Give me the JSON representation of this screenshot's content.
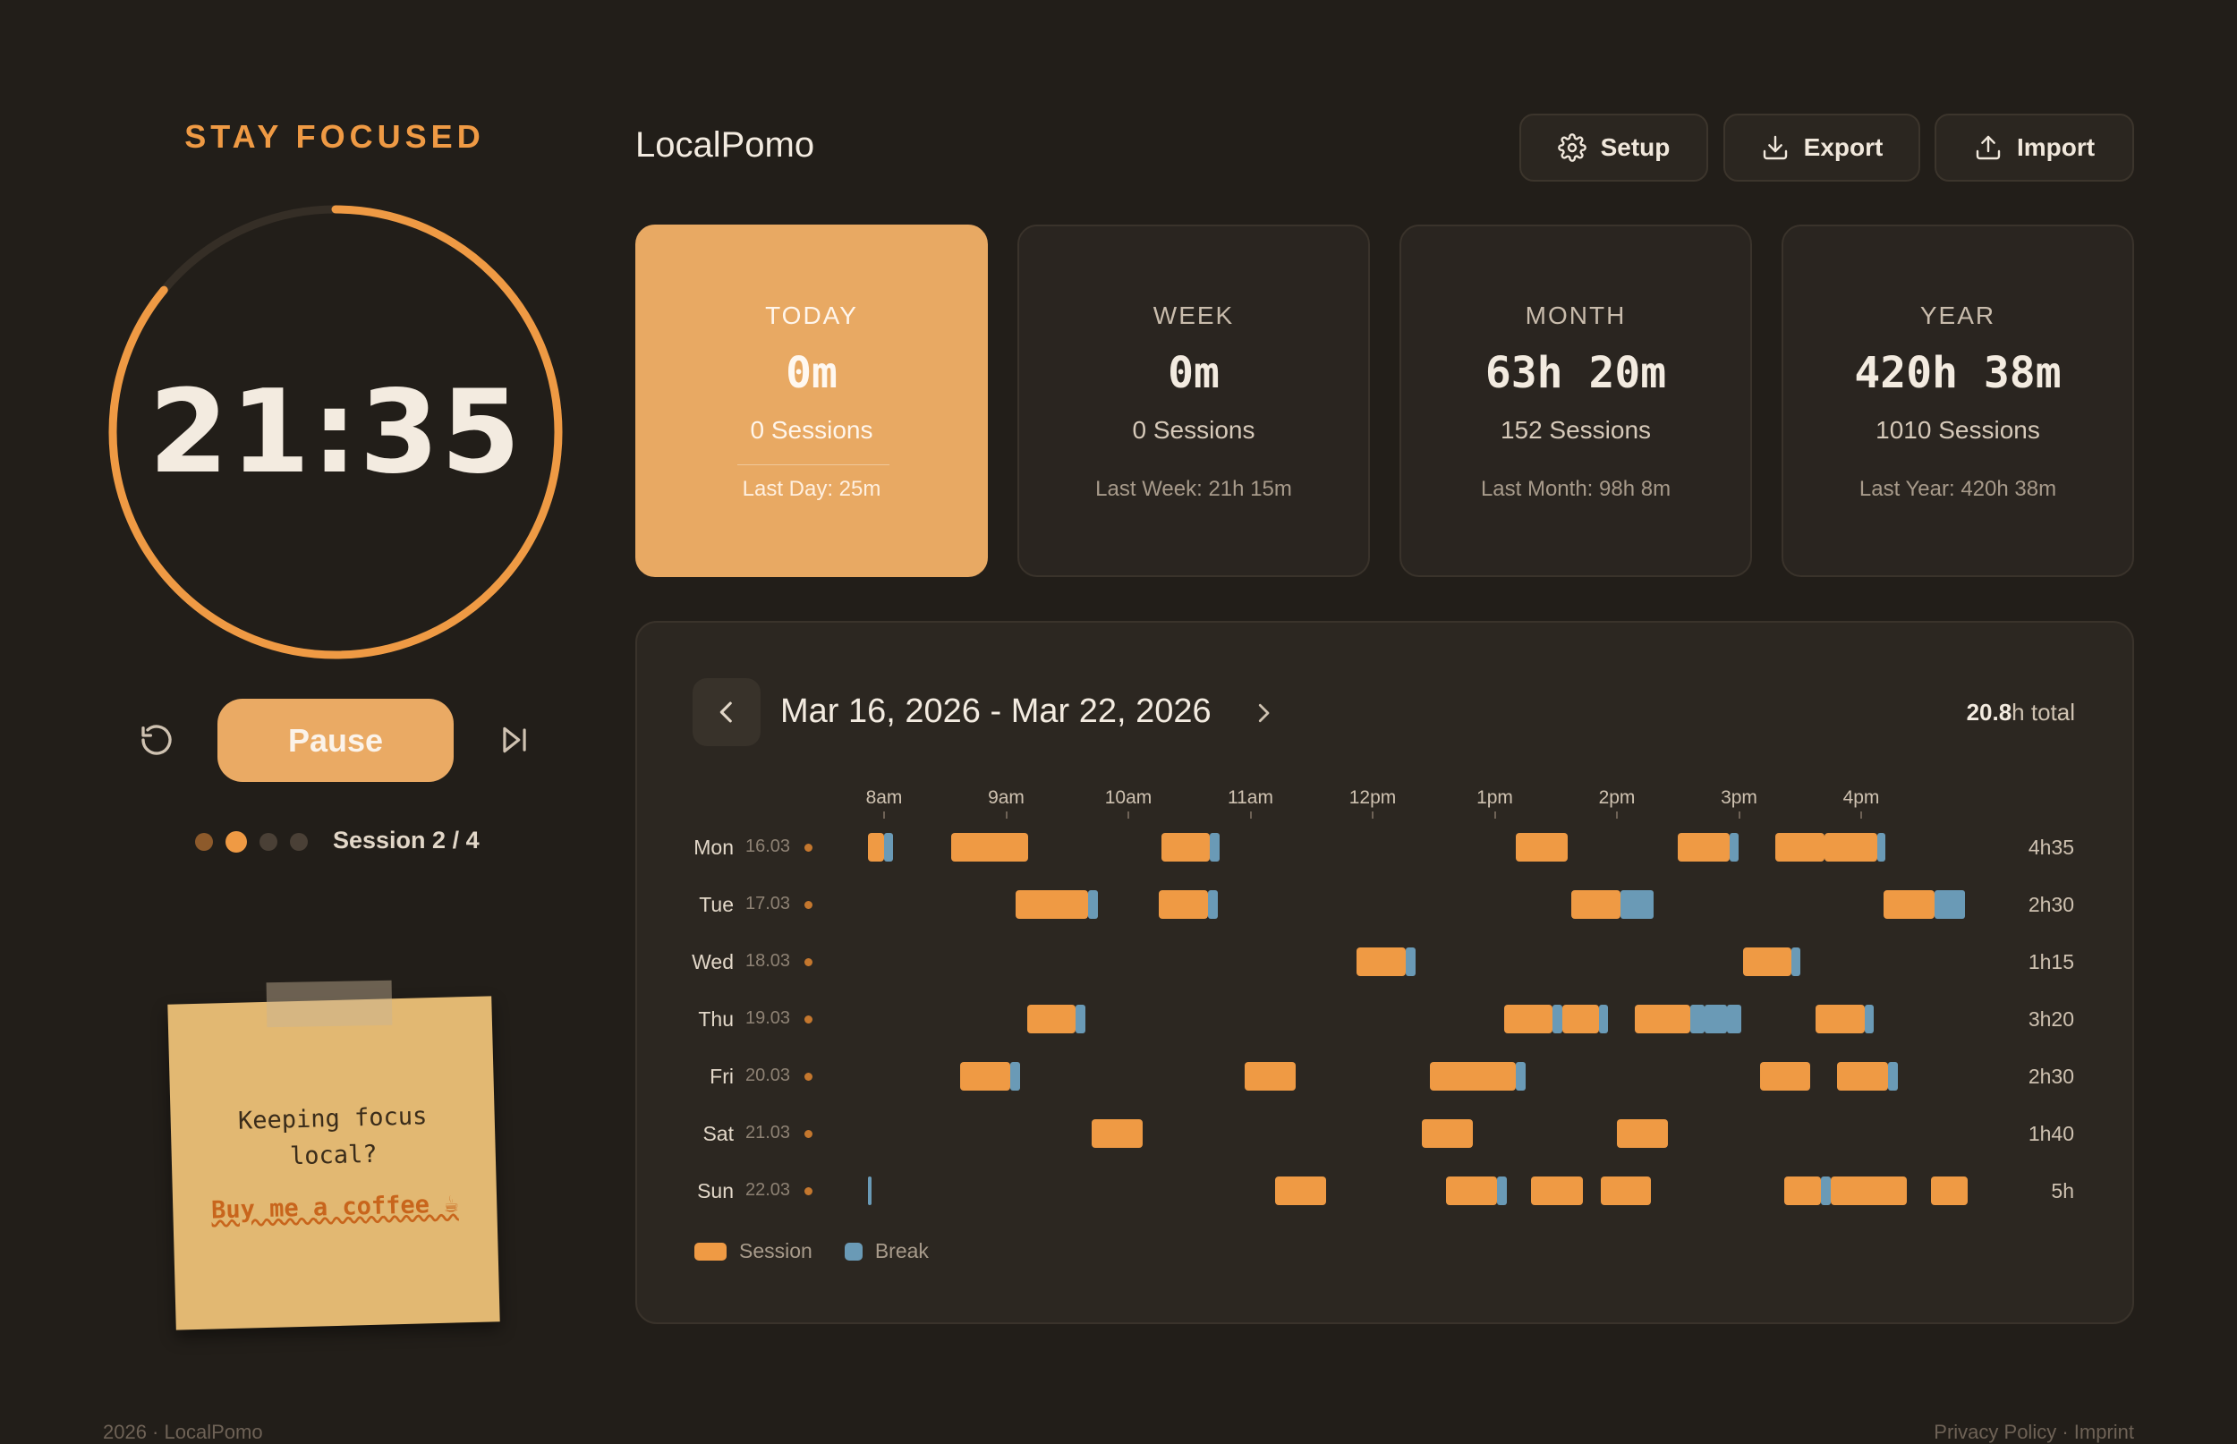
{
  "timer": {
    "heading": "STAY FOCUSED",
    "time": "21:35",
    "progress": 0.86,
    "pause_label": "Pause",
    "session_label": "Session 2 / 4",
    "session_current": 2,
    "session_total": 4
  },
  "sticky": {
    "line1": "Keeping focus",
    "line2": "local?",
    "link": "Buy me a coffee ☕"
  },
  "header": {
    "title": "LocalPomo",
    "setup_label": "Setup",
    "export_label": "Export",
    "import_label": "Import"
  },
  "stats": [
    {
      "label": "TODAY",
      "value": "0m",
      "sessions": "0 Sessions",
      "last": "Last Day: 25m"
    },
    {
      "label": "WEEK",
      "value": "0m",
      "sessions": "0 Sessions",
      "last": "Last Week: 21h 15m"
    },
    {
      "label": "MONTH",
      "value": "63h 20m",
      "sessions": "152 Sessions",
      "last": "Last Month: 98h 8m"
    },
    {
      "label": "YEAR",
      "value": "420h 38m",
      "sessions": "1010 Sessions",
      "last": "Last Year: 420h 38m"
    }
  ],
  "week": {
    "range": "Mar 16, 2026 - Mar 22, 2026",
    "total_value": "20.8",
    "total_suffix": "h total",
    "hours": [
      "8am",
      "9am",
      "10am",
      "11am",
      "12pm",
      "1pm",
      "2pm",
      "3pm",
      "4pm"
    ],
    "legend_session": "Session",
    "legend_break": "Break",
    "colors": {
      "session": "#ef9a44",
      "break": "#6a9ab6"
    },
    "days": [
      {
        "day": "Mon",
        "date": "16.03",
        "total": "4h35",
        "segs": [
          [
            "s",
            7.87,
            8.0
          ],
          [
            "b",
            8.0,
            8.07
          ],
          [
            "s",
            8.55,
            9.18
          ],
          [
            "s",
            10.27,
            10.67
          ],
          [
            "b",
            10.67,
            10.75
          ],
          [
            "s",
            13.17,
            13.6
          ],
          [
            "s",
            14.5,
            14.92
          ],
          [
            "b",
            14.92,
            15.0
          ],
          [
            "s",
            15.3,
            15.7
          ],
          [
            "s",
            15.7,
            16.13
          ],
          [
            "b",
            16.13,
            16.2
          ]
        ]
      },
      {
        "day": "Tue",
        "date": "17.03",
        "total": "2h30",
        "segs": [
          [
            "s",
            9.08,
            9.67
          ],
          [
            "b",
            9.67,
            9.75
          ],
          [
            "s",
            10.25,
            10.65
          ],
          [
            "b",
            10.65,
            10.73
          ],
          [
            "s",
            13.63,
            14.03
          ],
          [
            "b",
            14.03,
            14.3
          ],
          [
            "s",
            16.18,
            16.6
          ],
          [
            "b",
            16.6,
            16.85
          ]
        ]
      },
      {
        "day": "Wed",
        "date": "18.03",
        "total": "1h15",
        "segs": [
          [
            "s",
            11.87,
            12.27
          ],
          [
            "b",
            12.27,
            12.35
          ],
          [
            "s",
            15.03,
            15.43
          ],
          [
            "b",
            15.43,
            15.5
          ]
        ]
      },
      {
        "day": "Thu",
        "date": "19.03",
        "total": "3h20",
        "segs": [
          [
            "s",
            9.17,
            9.57
          ],
          [
            "b",
            9.57,
            9.65
          ],
          [
            "s",
            13.08,
            13.47
          ],
          [
            "b",
            13.47,
            13.55
          ],
          [
            "s",
            13.55,
            13.85
          ],
          [
            "b",
            13.85,
            13.93
          ],
          [
            "s",
            14.15,
            14.6
          ],
          [
            "b",
            14.6,
            14.72
          ],
          [
            "b",
            14.72,
            14.9
          ],
          [
            "b",
            14.9,
            15.02
          ],
          [
            "s",
            15.63,
            16.03
          ],
          [
            "b",
            16.03,
            16.1
          ]
        ]
      },
      {
        "day": "Fri",
        "date": "20.03",
        "total": "2h30",
        "segs": [
          [
            "s",
            8.62,
            9.03
          ],
          [
            "b",
            9.03,
            9.11
          ],
          [
            "s",
            10.95,
            11.37
          ],
          [
            "s",
            12.47,
            13.17
          ],
          [
            "b",
            13.17,
            13.25
          ],
          [
            "s",
            15.17,
            15.58
          ],
          [
            "s",
            15.8,
            16.22
          ],
          [
            "b",
            16.22,
            16.3
          ]
        ]
      },
      {
        "day": "Sat",
        "date": "21.03",
        "total": "1h40",
        "segs": [
          [
            "s",
            9.7,
            10.12
          ],
          [
            "s",
            12.4,
            12.82
          ],
          [
            "s",
            14.0,
            14.42
          ]
        ]
      },
      {
        "day": "Sun",
        "date": "22.03",
        "total": "5h",
        "segs": [
          [
            "b",
            7.87,
            7.9
          ],
          [
            "s",
            11.2,
            11.62
          ],
          [
            "s",
            12.6,
            13.02
          ],
          [
            "b",
            13.02,
            13.1
          ],
          [
            "s",
            13.3,
            13.72
          ],
          [
            "s",
            13.87,
            14.28
          ],
          [
            "s",
            15.37,
            15.67
          ],
          [
            "b",
            15.67,
            15.75
          ],
          [
            "s",
            15.75,
            16.37
          ],
          [
            "s",
            16.57,
            16.87
          ]
        ]
      }
    ]
  },
  "footer": {
    "left": "2026 · LocalPomo",
    "right": "Privacy Policy · Imprint"
  }
}
